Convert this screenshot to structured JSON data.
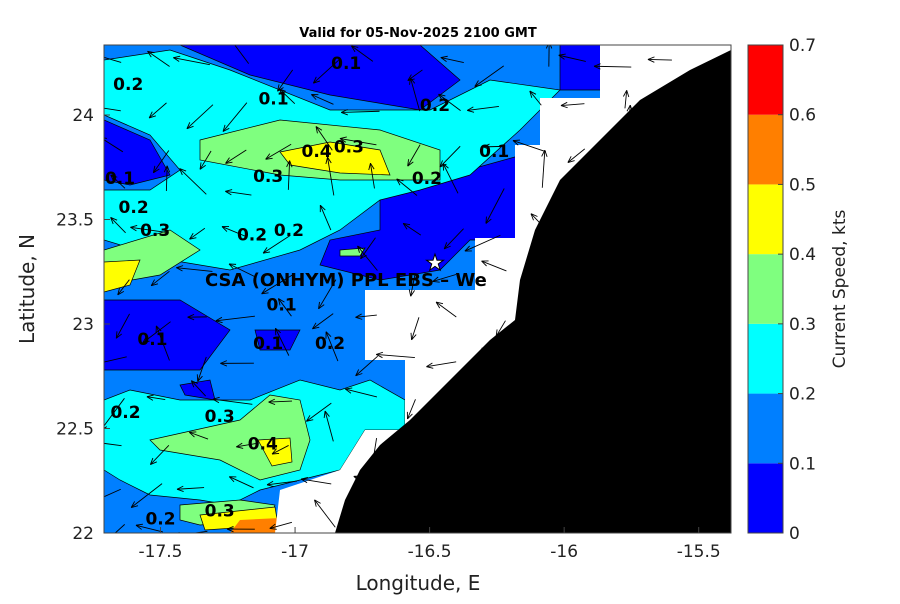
{
  "chart_data": {
    "type": "heatmap",
    "subtype": "filled-contour-map-with-current-vectors",
    "title": "Valid for 05-Nov-2025 2100 GMT",
    "xlabel": "Longitude, E",
    "ylabel": "Latitude, N",
    "xlim": [
      -17.71,
      -15.38
    ],
    "ylim": [
      22,
      24.335
    ],
    "xticks": [
      -17.5,
      -17,
      -16.5,
      -16,
      -15.5
    ],
    "xtick_labels": [
      "-17.5",
      "-17",
      "-16.5",
      "-16",
      "-15.5"
    ],
    "yticks": [
      22,
      22.5,
      23,
      23.5,
      24
    ],
    "ytick_labels": [
      "22",
      "22.5",
      "23",
      "23.5",
      "24"
    ],
    "colorbar": {
      "label": "Current Speed, kts",
      "ticks": [
        "0",
        "0.1",
        "0.2",
        "0.3",
        "0.4",
        "0.5",
        "0.6",
        "0.7"
      ],
      "levels": [
        0,
        0.1,
        0.2,
        0.3,
        0.4,
        0.5,
        0.6,
        0.7
      ],
      "colors": [
        "#0000ff",
        "#007fff",
        "#00ffff",
        "#7fff7f",
        "#ffff00",
        "#ff7f00",
        "#ff0000"
      ]
    },
    "contour_labels": [
      {
        "text": "0.1",
        "lon": -16.81,
        "lat": 24.22
      },
      {
        "text": "0.2",
        "lon": -17.62,
        "lat": 24.12
      },
      {
        "text": "0.1",
        "lon": -17.08,
        "lat": 24.05
      },
      {
        "text": "0.2",
        "lon": -16.48,
        "lat": 24.02
      },
      {
        "text": "0.4",
        "lon": -16.92,
        "lat": 23.8
      },
      {
        "text": "0.3",
        "lon": -16.8,
        "lat": 23.82
      },
      {
        "text": "0.1",
        "lon": -16.26,
        "lat": 23.8
      },
      {
        "text": "0.1",
        "lon": -17.66,
        "lat": 23.67
      },
      {
        "text": "0.3",
        "lon": -17.1,
        "lat": 23.68
      },
      {
        "text": "0.2",
        "lon": -16.51,
        "lat": 23.67
      },
      {
        "text": "0.2",
        "lon": -17.6,
        "lat": 23.53
      },
      {
        "text": "0.3",
        "lon": -17.52,
        "lat": 23.42
      },
      {
        "text": "0.2",
        "lon": -17.16,
        "lat": 23.4
      },
      {
        "text": "0.2",
        "lon": -17.06,
        "lat": 23.42
      },
      {
        "text": "0.1",
        "lon": -17.05,
        "lat": 23.15
      },
      {
        "text": "0.1",
        "lon": -17.53,
        "lat": 22.9
      },
      {
        "text": "0.1",
        "lon": -17.1,
        "lat": 22.88
      },
      {
        "text": "0.2",
        "lon": -16.87,
        "lat": 22.88
      },
      {
        "text": "0.2",
        "lon": -17.63,
        "lat": 22.55
      },
      {
        "text": "0.3",
        "lon": -17.28,
        "lat": 22.53
      },
      {
        "text": "0.4",
        "lon": -17.12,
        "lat": 22.4
      },
      {
        "text": "0.3",
        "lon": -17.28,
        "lat": 22.08
      },
      {
        "text": "0.2",
        "lon": -17.5,
        "lat": 22.04
      }
    ],
    "station": {
      "label": "CSA (ONHYM) PPL EBS – We",
      "lon": -16.51,
      "lat": 23.3,
      "marker": "star"
    }
  }
}
